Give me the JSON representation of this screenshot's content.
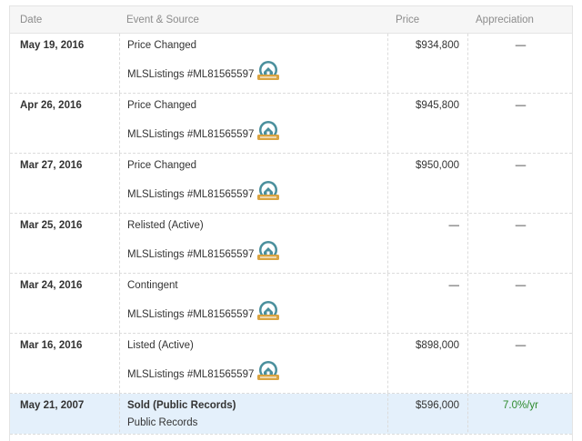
{
  "table": {
    "headers": {
      "date": "Date",
      "event": "Event & Source",
      "price": "Price",
      "appreciation": "Appreciation"
    },
    "rows": [
      {
        "date": "May 19, 2016",
        "event": "Price Changed",
        "source": "MLSListings #ML81565597",
        "price": "$934,800",
        "appreciation": "—",
        "badge": "mls-badge-icon"
      },
      {
        "date": "Apr 26, 2016",
        "event": "Price Changed",
        "source": "MLSListings #ML81565597",
        "price": "$945,800",
        "appreciation": "—",
        "badge": "mls-badge-icon"
      },
      {
        "date": "Mar 27, 2016",
        "event": "Price Changed",
        "source": "MLSListings #ML81565597",
        "price": "$950,000",
        "appreciation": "—",
        "badge": "mls-badge-icon"
      },
      {
        "date": "Mar 25, 2016",
        "event": "Relisted (Active)",
        "source": "MLSListings #ML81565597",
        "price": "—",
        "appreciation": "—",
        "badge": "mls-badge-icon"
      },
      {
        "date": "Mar 24, 2016",
        "event": "Contingent",
        "source": "MLSListings #ML81565597",
        "price": "—",
        "appreciation": "—",
        "badge": "mls-badge-icon"
      },
      {
        "date": "Mar 16, 2016",
        "event": "Listed (Active)",
        "source": "MLSListings #ML81565597",
        "price": "$898,000",
        "appreciation": "—",
        "badge": "mls-badge-icon"
      },
      {
        "date": "May 21, 2007",
        "event": "Sold (Public Records)",
        "source": "Public Records",
        "price": "$596,000",
        "appreciation": "7.0%/yr"
      }
    ]
  },
  "colors": {
    "header_bg": "#f6f6f6",
    "highlight_row_bg": "#e4f0fb",
    "positive_appreciation": "#2d8a2d",
    "badge_teal": "#4a8f9c",
    "badge_gold": "#d9a441"
  }
}
